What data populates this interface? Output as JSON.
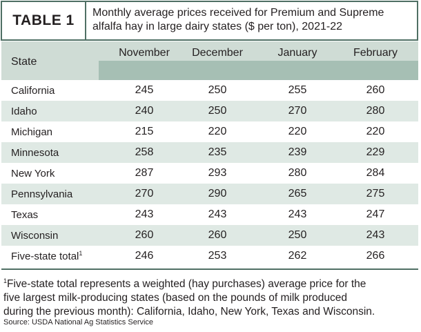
{
  "table": {
    "tag": "TABLE 1",
    "title_line1": "Monthly average prices received for Premium and Supreme",
    "title_line2": "alfalfa hay in large dairy states ($ per ton), 2021-22",
    "state_header": "State",
    "months": [
      "November",
      "December",
      "January",
      "February"
    ],
    "rows": [
      {
        "state": "California",
        "values": [
          "245",
          "250",
          "255",
          "260"
        ]
      },
      {
        "state": "Idaho",
        "values": [
          "240",
          "250",
          "270",
          "280"
        ]
      },
      {
        "state": "Michigan",
        "values": [
          "215",
          "220",
          "220",
          "220"
        ]
      },
      {
        "state": "Minnesota",
        "values": [
          "258",
          "235",
          "239",
          "229"
        ]
      },
      {
        "state": "New York",
        "values": [
          "287",
          "293",
          "280",
          "284"
        ]
      },
      {
        "state": "Pennsylvania",
        "values": [
          "270",
          "290",
          "265",
          "275"
        ]
      },
      {
        "state": "Texas",
        "values": [
          "243",
          "243",
          "243",
          "247"
        ]
      },
      {
        "state": "Wisconsin",
        "values": [
          "260",
          "260",
          "250",
          "243"
        ]
      }
    ],
    "total_row": {
      "state": "Five-state total",
      "marker": "1",
      "values": [
        "246",
        "253",
        "262",
        "266"
      ]
    }
  },
  "footnote": {
    "marker": "1",
    "line1": "Five-state total represents a weighted (hay purchases) average price for the",
    "line2": "five largest milk-producing states (based on the pounds of milk produced",
    "line3": "during the previous month): California, Idaho, New York, Texas and Wisconsin."
  },
  "source": "Source: USDA National Ag Statistics Service",
  "colors": {
    "border": "#4f6f64",
    "header_light": "#cfdcd5",
    "header_dark": "#a6bfb4",
    "row_shade": "#dfe9e4"
  }
}
